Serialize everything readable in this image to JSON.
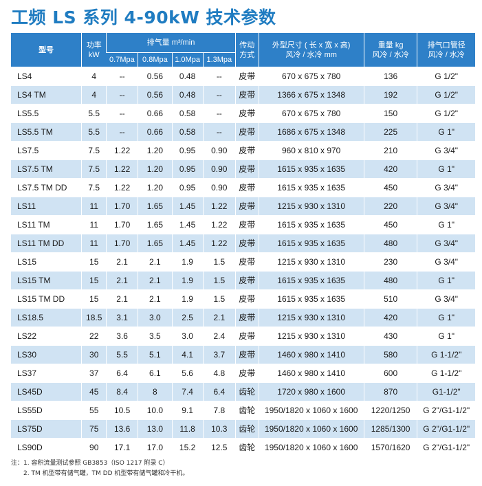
{
  "title": "工频 LS 系列 4-90kW 技术参数",
  "headers": {
    "model": "型号",
    "power_1": "功率",
    "power_2": "kW",
    "flow_1": "排气量 m³/min",
    "pressures": [
      "0.7Mpa",
      "0.8Mpa",
      "1.0Mpa",
      "1.3Mpa"
    ],
    "drive_1": "传动",
    "drive_2": "方式",
    "dims_1": "外型尺寸 ( 长 x 宽 x 高)",
    "dims_2": "风冷 / 水冷 mm",
    "weight_1": "重量 kg",
    "weight_2": "风冷 / 水冷",
    "outlet_1": "排气口管径",
    "outlet_2": "风冷 / 水冷"
  },
  "rows": [
    [
      "LS4",
      "4",
      "--",
      "0.56",
      "0.48",
      "--",
      "皮带",
      "670 x 675 x 780",
      "136",
      "G 1/2\""
    ],
    [
      "LS4 TM",
      "4",
      "--",
      "0.56",
      "0.48",
      "--",
      "皮带",
      "1366 x 675 x 1348",
      "192",
      "G 1/2\""
    ],
    [
      "LS5.5",
      "5.5",
      "--",
      "0.66",
      "0.58",
      "--",
      "皮带",
      "670 x 675 x 780",
      "150",
      "G 1/2\""
    ],
    [
      "LS5.5 TM",
      "5.5",
      "--",
      "0.66",
      "0.58",
      "--",
      "皮带",
      "1686 x 675 x 1348",
      "225",
      "G 1\""
    ],
    [
      "LS7.5",
      "7.5",
      "1.22",
      "1.20",
      "0.95",
      "0.90",
      "皮带",
      "960 x 810 x 970",
      "210",
      "G 3/4\""
    ],
    [
      "LS7.5 TM",
      "7.5",
      "1.22",
      "1.20",
      "0.95",
      "0.90",
      "皮带",
      "1615 x 935 x 1635",
      "420",
      "G 1\""
    ],
    [
      "LS7.5 TM DD",
      "7.5",
      "1.22",
      "1.20",
      "0.95",
      "0.90",
      "皮带",
      "1615 x 935 x 1635",
      "450",
      "G 3/4\""
    ],
    [
      "LS11",
      "11",
      "1.70",
      "1.65",
      "1.45",
      "1.22",
      "皮带",
      "1215 x 930 x 1310",
      "220",
      "G 3/4\""
    ],
    [
      "LS11 TM",
      "11",
      "1.70",
      "1.65",
      "1.45",
      "1.22",
      "皮带",
      "1615 x 935 x 1635",
      "450",
      "G 1\""
    ],
    [
      "LS11 TM DD",
      "11",
      "1.70",
      "1.65",
      "1.45",
      "1.22",
      "皮带",
      "1615 x 935 x 1635",
      "480",
      "G 3/4\""
    ],
    [
      "LS15",
      "15",
      "2.1",
      "2.1",
      "1.9",
      "1.5",
      "皮带",
      "1215 x 930 x 1310",
      "230",
      "G 3/4\""
    ],
    [
      "LS15 TM",
      "15",
      "2.1",
      "2.1",
      "1.9",
      "1.5",
      "皮带",
      "1615 x 935 x 1635",
      "480",
      "G 1\""
    ],
    [
      "LS15 TM DD",
      "15",
      "2.1",
      "2.1",
      "1.9",
      "1.5",
      "皮带",
      "1615 x 935 x 1635",
      "510",
      "G 3/4\""
    ],
    [
      "LS18.5",
      "18.5",
      "3.1",
      "3.0",
      "2.5",
      "2.1",
      "皮带",
      "1215 x 930 x 1310",
      "420",
      "G 1\""
    ],
    [
      "LS22",
      "22",
      "3.6",
      "3.5",
      "3.0",
      "2.4",
      "皮带",
      "1215 x 930 x 1310",
      "430",
      "G 1\""
    ],
    [
      "LS30",
      "30",
      "5.5",
      "5.1",
      "4.1",
      "3.7",
      "皮带",
      "1460 x 980 x 1410",
      "580",
      "G 1-1/2\""
    ],
    [
      "LS37",
      "37",
      "6.4",
      "6.1",
      "5.6",
      "4.8",
      "皮带",
      "1460 x 980 x 1410",
      "600",
      "G 1-1/2\""
    ],
    [
      "LS45D",
      "45",
      "8.4",
      "8",
      "7.4",
      "6.4",
      "齿轮",
      "1720 x 980 x 1600",
      "870",
      "G1-1/2\""
    ],
    [
      "LS55D",
      "55",
      "10.5",
      "10.0",
      "9.1",
      "7.8",
      "齿轮",
      "1950/1820 x 1060 x 1600",
      "1220/1250",
      "G 2\"/G1-1/2\""
    ],
    [
      "LS75D",
      "75",
      "13.6",
      "13.0",
      "11.8",
      "10.3",
      "齿轮",
      "1950/1820 x 1060 x 1600",
      "1285/1300",
      "G 2\"/G1-1/2\""
    ],
    [
      "LS90D",
      "90",
      "17.1",
      "17.0",
      "15.2",
      "12.5",
      "齿轮",
      "1950/1820 x 1060 x 1600",
      "1570/1620",
      "G 2\"/G1-1/2\""
    ]
  ],
  "notes": [
    "注：1. 容积流量测试参照 GB3853（ISO 1217 附录 C）",
    "2. TM 机型带有储气罐，TM DD 机型带有储气罐和冷干机。"
  ],
  "colors": {
    "title": "#1f7cc1",
    "header_bg": "#2e80c8",
    "row_alt": "#d0e3f3"
  }
}
